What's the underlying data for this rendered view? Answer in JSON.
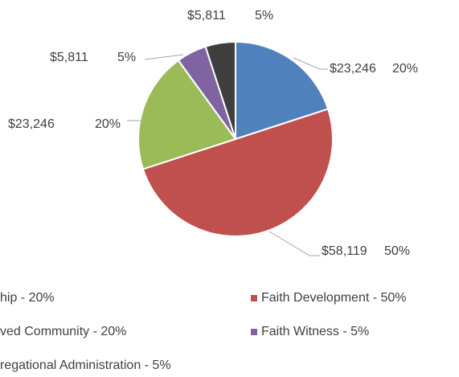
{
  "chart_data": {
    "type": "pie",
    "categories": [
      "hip - 20%",
      "Faith Development - 50%",
      "ved Community - 20%",
      "Faith Witness - 5%",
      "regational Administration - 5%"
    ],
    "values": [
      20,
      50,
      20,
      5,
      5
    ],
    "value_labels": [
      "20%",
      "50%",
      "20%",
      "5%",
      "5%"
    ],
    "amounts": [
      23246,
      58119,
      23246,
      5811,
      5811
    ],
    "amount_labels": [
      "$23,246",
      "$58,119",
      "$23,246",
      "$5,811",
      "$5,811"
    ],
    "colors": [
      "#4f81bd",
      "#c0504d",
      "#9bbb59",
      "#8064a2",
      "#3f3f3f"
    ],
    "legend": "bottom"
  }
}
